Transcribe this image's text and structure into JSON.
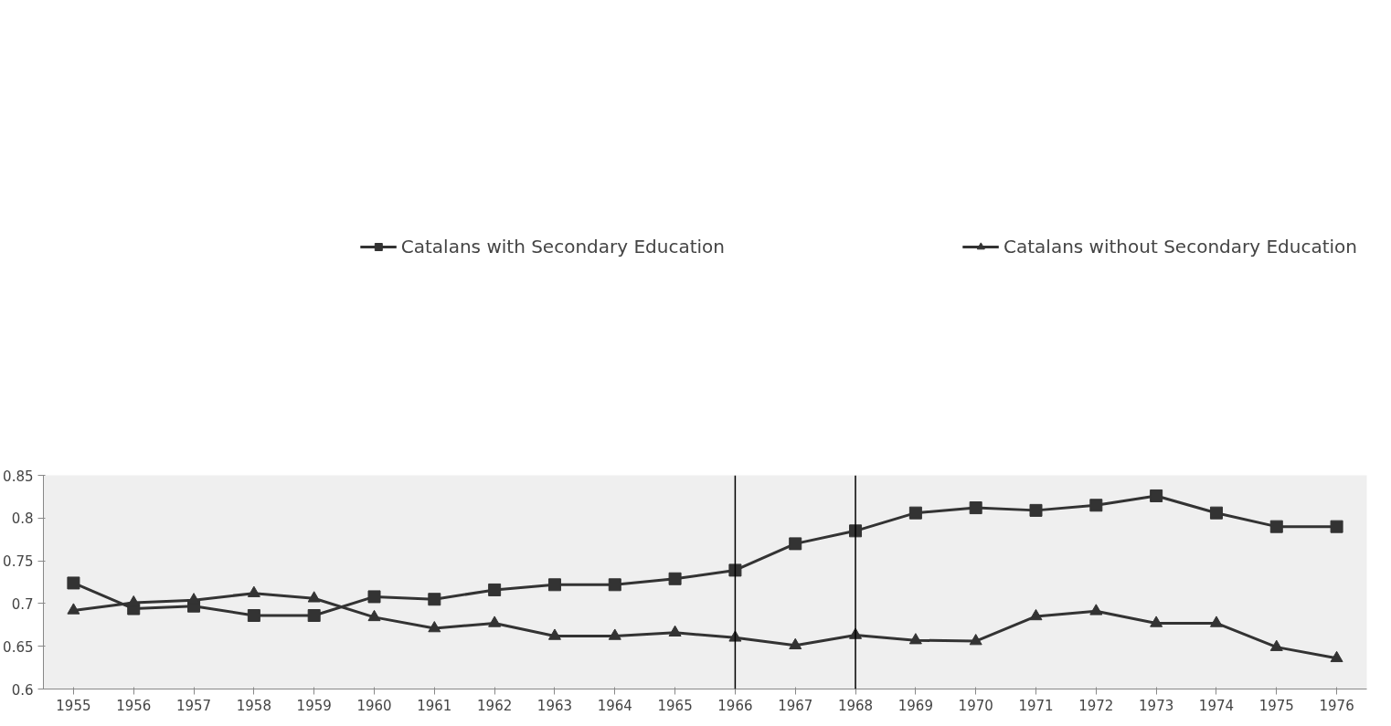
{
  "chart_data": {
    "type": "line",
    "x": [
      1955,
      1956,
      1957,
      1958,
      1959,
      1960,
      1961,
      1962,
      1963,
      1964,
      1965,
      1966,
      1967,
      1968,
      1969,
      1970,
      1971,
      1972,
      1973,
      1974,
      1975,
      1976
    ],
    "series": [
      {
        "name": "Catalans with Secondary Education",
        "color": "#333333",
        "marker": "square",
        "values": [
          0.724,
          0.694,
          0.697,
          0.686,
          0.686,
          0.708,
          0.705,
          0.716,
          0.722,
          0.722,
          0.729,
          0.739,
          0.77,
          0.785,
          0.806,
          0.812,
          0.809,
          0.815,
          0.826,
          0.806,
          0.79,
          0.79
        ]
      },
      {
        "name": "Catalans without Secondary Education",
        "color": "#333333",
        "marker": "triangle",
        "values": [
          0.692,
          0.701,
          0.704,
          0.712,
          0.706,
          0.684,
          0.671,
          0.677,
          0.662,
          0.662,
          0.666,
          0.66,
          0.651,
          0.663,
          0.657,
          0.656,
          0.685,
          0.691,
          0.677,
          0.677,
          0.649,
          0.636
        ]
      }
    ],
    "xlim": [
      1954.5,
      1976.5
    ],
    "xticks": [
      1955,
      1956,
      1957,
      1958,
      1959,
      1960,
      1961,
      1962,
      1963,
      1964,
      1965,
      1966,
      1967,
      1968,
      1969,
      1970,
      1971,
      1972,
      1973,
      1974,
      1975,
      1976
    ],
    "ylim": [
      0.6,
      0.85
    ],
    "yticks": [
      0.6,
      0.65,
      0.7,
      0.75,
      0.8,
      0.85
    ],
    "ref_lines": [
      {
        "axis": "x",
        "value": 1966,
        "color": "#000000"
      },
      {
        "axis": "x",
        "value": 1968,
        "color": "#000000"
      }
    ],
    "grid": false,
    "legend": "top",
    "line_style": "solid"
  }
}
